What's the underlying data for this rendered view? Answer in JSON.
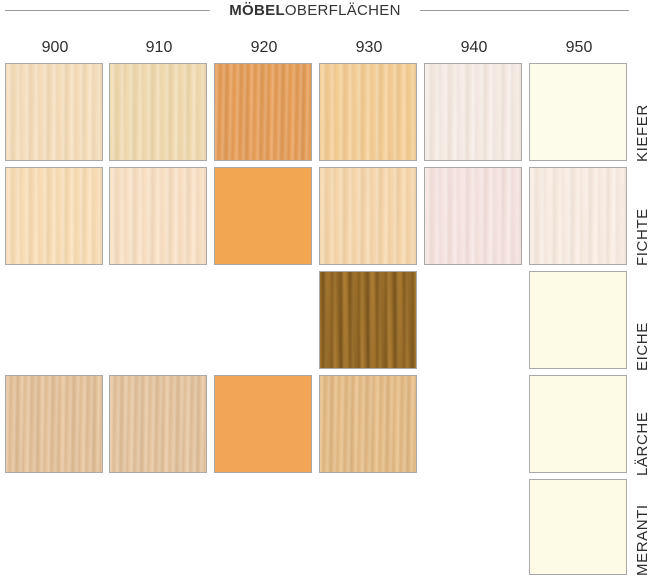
{
  "title": {
    "bold": "MÖBEL",
    "regular": "OBERFLÄCHEN"
  },
  "columns": [
    "900",
    "910",
    "920",
    "930",
    "940",
    "950"
  ],
  "rows": [
    "KIEFER",
    "FICHTE",
    "EICHE",
    "LÄRCHE",
    "MERANTI"
  ],
  "swatches": [
    {
      "row": "KIEFER",
      "code": "900",
      "color": "#f8dfbd",
      "texture": "wood-light"
    },
    {
      "row": "KIEFER",
      "code": "910",
      "color": "#f2dcb0",
      "texture": "wood-light"
    },
    {
      "row": "KIEFER",
      "code": "920",
      "color": "#eaa15a",
      "texture": "wood-med"
    },
    {
      "row": "KIEFER",
      "code": "930",
      "color": "#f6cf95",
      "texture": "wood-light"
    },
    {
      "row": "KIEFER",
      "code": "940",
      "color": "#f8ede6",
      "texture": "wood-light"
    },
    {
      "row": "KIEFER",
      "code": "950",
      "color": "#fdfbe9",
      "texture": "wood-flat"
    },
    {
      "row": "FICHTE",
      "code": "900",
      "color": "#fbdfb6",
      "texture": "wood-light"
    },
    {
      "row": "FICHTE",
      "code": "910",
      "color": "#fbe2c6",
      "texture": "wood-light"
    },
    {
      "row": "FICHTE",
      "code": "920",
      "color": "#f3a651",
      "texture": "wood-flat"
    },
    {
      "row": "FICHTE",
      "code": "930",
      "color": "#f8d8ac",
      "texture": "wood-light"
    },
    {
      "row": "FICHTE",
      "code": "940",
      "color": "#f8e6e3",
      "texture": "wood-light"
    },
    {
      "row": "FICHTE",
      "code": "950",
      "color": "#fbeee4",
      "texture": "wood-light"
    },
    {
      "row": "EICHE",
      "code": "930",
      "color": "#a8782e",
      "texture": "wood-oak"
    },
    {
      "row": "EICHE",
      "code": "950",
      "color": "#fdfbe6",
      "texture": "wood-flat"
    },
    {
      "row": "LÄRCHE",
      "code": "900",
      "color": "#e9c79f",
      "texture": "wood-med"
    },
    {
      "row": "LÄRCHE",
      "code": "910",
      "color": "#e9c9a4",
      "texture": "wood-med"
    },
    {
      "row": "LÄRCHE",
      "code": "920",
      "color": "#f2a557",
      "texture": "wood-flat"
    },
    {
      "row": "LÄRCHE",
      "code": "930",
      "color": "#eac08b",
      "texture": "wood-med"
    },
    {
      "row": "LÄRCHE",
      "code": "950",
      "color": "#fdfbe6",
      "texture": "wood-flat"
    },
    {
      "row": "MERANTI",
      "code": "950",
      "color": "#fdfbe6",
      "texture": "wood-flat"
    }
  ]
}
